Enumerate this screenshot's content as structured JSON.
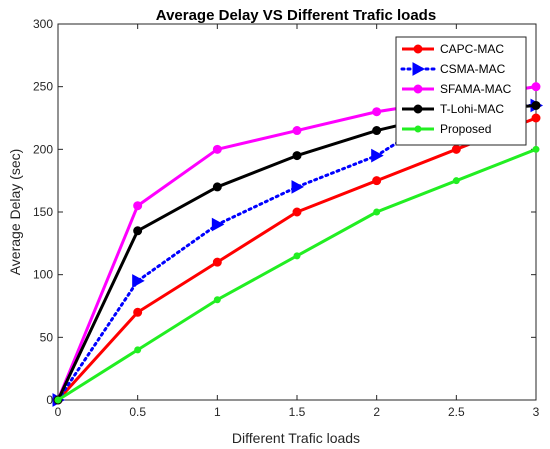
{
  "chart_data": {
    "type": "line",
    "title": "Average Delay VS Different Trafic loads",
    "xlabel": "Different Trafic loads",
    "ylabel": "Average Delay (sec)",
    "xlim": [
      0,
      3
    ],
    "ylim": [
      0,
      300
    ],
    "xticks": [
      "0",
      "0.5",
      "1",
      "1.5",
      "2",
      "2.5",
      "3"
    ],
    "yticks": [
      "0",
      "50",
      "100",
      "150",
      "200",
      "250",
      "300"
    ],
    "grid": false,
    "legend_position": "top-right",
    "series": [
      {
        "name": "CAPC-MAC",
        "color": "#ff0000",
        "line_style": "solid",
        "marker": "circle",
        "x": [
          0,
          0.5,
          1,
          1.5,
          2,
          2.5,
          3
        ],
        "values": [
          0,
          70,
          110,
          150,
          175,
          200,
          225
        ]
      },
      {
        "name": "CSMA-MAC",
        "color": "#0000ff",
        "line_style": "dotted",
        "marker": "triangle-right",
        "x": [
          0,
          0.5,
          1,
          1.5,
          2,
          2.5,
          3
        ],
        "values": [
          0,
          95,
          140,
          170,
          195,
          235,
          235
        ]
      },
      {
        "name": "SFAMA-MAC",
        "color": "#ff00ff",
        "line_style": "solid",
        "marker": "circle",
        "x": [
          0,
          0.5,
          1,
          1.5,
          2,
          2.5,
          3
        ],
        "values": [
          0,
          155,
          200,
          215,
          230,
          240,
          250
        ]
      },
      {
        "name": "T-Lohi-MAC",
        "color": "#000000",
        "line_style": "solid",
        "marker": "circle",
        "x": [
          0,
          0.5,
          1,
          1.5,
          2,
          2.5,
          3
        ],
        "values": [
          0,
          135,
          170,
          195,
          215,
          230,
          235
        ]
      },
      {
        "name": "Proposed",
        "color": "#22ee22",
        "line_style": "solid",
        "marker": "dot",
        "x": [
          0,
          0.5,
          1,
          1.5,
          2,
          2.5,
          3
        ],
        "values": [
          0,
          40,
          80,
          115,
          150,
          175,
          200
        ]
      }
    ]
  }
}
